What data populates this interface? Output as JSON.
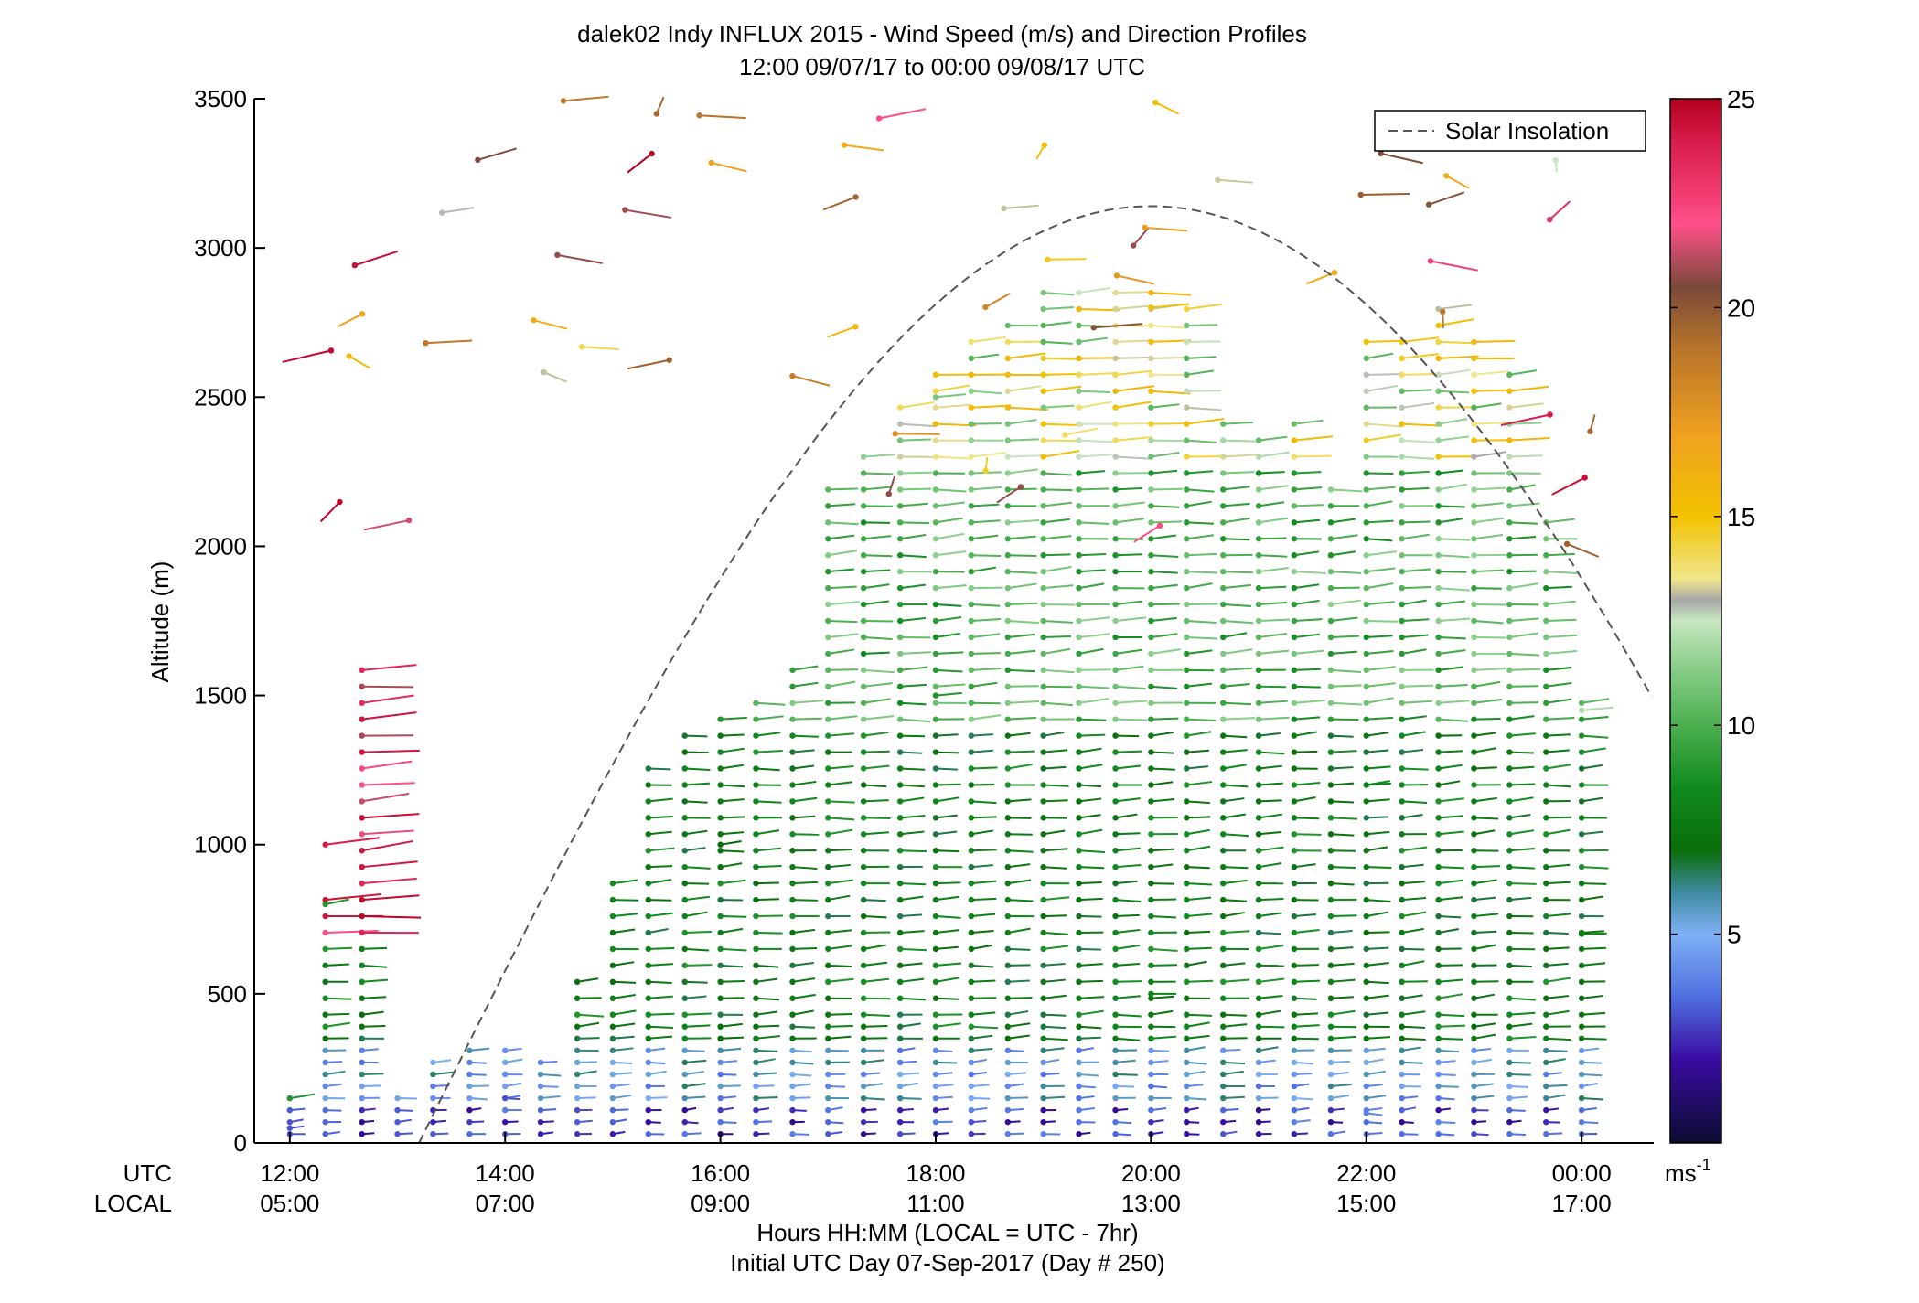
{
  "chart_data": {
    "type": "wind-barb-profile",
    "title": "dalek02 Indy INFLUX 2015 - Wind Speed (m/s) and Direction Profiles",
    "subtitle": "12:00 09/07/17 to 00:00 09/08/17  UTC",
    "ylabel": "Altitude (m)",
    "xlabel": "Hours HH:MM  (LOCAL = UTC - 7hr)",
    "xlabel2": "Initial UTC Day 07-Sep-2017 (Day # 250)",
    "utc_label": "UTC",
    "local_label": "LOCAL",
    "ylim": [
      0,
      3500
    ],
    "xlim_hours": [
      11.67,
      24.67
    ],
    "y_ticks": [
      "0",
      "500",
      "1000",
      "1500",
      "2000",
      "2500",
      "3000",
      "3500"
    ],
    "x_ticks": [
      {
        "hour": 12,
        "utc": "12:00",
        "local": "05:00"
      },
      {
        "hour": 14,
        "utc": "14:00",
        "local": "07:00"
      },
      {
        "hour": 16,
        "utc": "16:00",
        "local": "09:00"
      },
      {
        "hour": 18,
        "utc": "18:00",
        "local": "11:00"
      },
      {
        "hour": 20,
        "utc": "20:00",
        "local": "13:00"
      },
      {
        "hour": 22,
        "utc": "22:00",
        "local": "15:00"
      },
      {
        "hour": 24,
        "utc": "00:00",
        "local": "17:00"
      }
    ],
    "legend": {
      "label": "Solar Insolation",
      "position": "top-right",
      "style": "dashed",
      "color": "#555555"
    },
    "solar_insolation": {
      "sunrise_hour": 13.2,
      "noon_hour": 20.0,
      "peak_altitude": 3140
    },
    "colorbar": {
      "ticks": [
        "5",
        "10",
        "15",
        "20",
        "25"
      ],
      "unit": "ms",
      "unit_exponent": "-1",
      "range": [
        0,
        25
      ],
      "stops": [
        {
          "v": 0,
          "c": "#0b0b30"
        },
        {
          "v": 2,
          "c": "#3a0ca3"
        },
        {
          "v": 3.5,
          "c": "#4f6fe0"
        },
        {
          "v": 5,
          "c": "#7fb0f5"
        },
        {
          "v": 6,
          "c": "#3f8aa0"
        },
        {
          "v": 7,
          "c": "#0a6e0a"
        },
        {
          "v": 8.5,
          "c": "#0f8a1e"
        },
        {
          "v": 10,
          "c": "#4caf50"
        },
        {
          "v": 11.5,
          "c": "#8fd08f"
        },
        {
          "v": 12.5,
          "c": "#c8e6c0"
        },
        {
          "v": 13,
          "c": "#a8a8a8"
        },
        {
          "v": 13.5,
          "c": "#f0e68c"
        },
        {
          "v": 15,
          "c": "#f2c200"
        },
        {
          "v": 17,
          "c": "#f0a020"
        },
        {
          "v": 19,
          "c": "#b8742a"
        },
        {
          "v": 20.5,
          "c": "#7a4a3a"
        },
        {
          "v": 22,
          "c": "#ff4f8a"
        },
        {
          "v": 24,
          "c": "#d81b4a"
        },
        {
          "v": 25,
          "c": "#b3001e"
        }
      ]
    },
    "profile_times_hours": [
      12.0,
      12.33,
      12.67,
      13.0,
      13.33,
      13.67,
      14.0,
      14.33,
      14.67,
      15.0,
      15.33,
      15.67,
      16.0,
      16.33,
      16.67,
      17.0,
      17.33,
      17.67,
      18.0,
      18.33,
      18.67,
      19.0,
      19.33,
      19.67,
      20.0,
      20.33,
      20.67,
      21.0,
      21.33,
      21.67,
      22.0,
      22.33,
      22.67,
      23.0,
      23.33,
      23.67,
      24.0
    ],
    "profile_tops_m": [
      180,
      820,
      1600,
      150,
      280,
      330,
      330,
      300,
      540,
      900,
      1270,
      1390,
      1430,
      1480,
      1600,
      2200,
      2300,
      2500,
      2620,
      2700,
      2750,
      2900,
      2900,
      2900,
      2900,
      2800,
      2420,
      2400,
      2420,
      2200,
      2720,
      2720,
      2800,
      2700,
      2600,
      2100,
      1480
    ],
    "samples": [
      {
        "hour": 12.0,
        "alt_m": 50,
        "speed_ms": 3,
        "direction_deg": 290
      },
      {
        "hour": 12.0,
        "alt_m": 150,
        "speed_ms": 9,
        "direction_deg": 295
      },
      {
        "hour": 12.33,
        "alt_m": 1000,
        "speed_ms": 24,
        "direction_deg": 290
      },
      {
        "hour": 12.33,
        "alt_m": 800,
        "speed_ms": 9,
        "direction_deg": 300
      },
      {
        "hour": 14.0,
        "alt_m": 150,
        "speed_ms": 3,
        "direction_deg": 260
      },
      {
        "hour": 16.0,
        "alt_m": 1000,
        "speed_ms": 7,
        "direction_deg": 295
      },
      {
        "hour": 18.0,
        "alt_m": 1500,
        "speed_ms": 9,
        "direction_deg": 285
      },
      {
        "hour": 18.0,
        "alt_m": 2500,
        "speed_ms": 11,
        "direction_deg": 285
      },
      {
        "hour": 20.0,
        "alt_m": 500,
        "speed_ms": 8,
        "direction_deg": 270
      },
      {
        "hour": 20.0,
        "alt_m": 2800,
        "speed_ms": 15,
        "direction_deg": 285
      },
      {
        "hour": 22.0,
        "alt_m": 100,
        "speed_ms": 4,
        "direction_deg": 250
      },
      {
        "hour": 22.0,
        "alt_m": 1200,
        "speed_ms": 8,
        "direction_deg": 280
      },
      {
        "hour": 24.0,
        "alt_m": 700,
        "speed_ms": 8,
        "direction_deg": 275
      },
      {
        "hour": 24.0,
        "alt_m": 1450,
        "speed_ms": 12,
        "direction_deg": 285
      }
    ]
  }
}
